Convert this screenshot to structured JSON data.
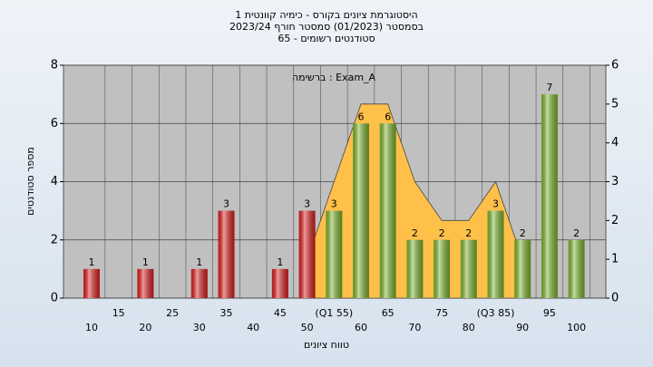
{
  "chart_data": {
    "type": "bar",
    "title": [
      "היסטוגרמת ציונים בקורס - כימיה קוונטית 1",
      "בסמסטר (01/2023) סמסטר חורף 2023/24",
      "סטודנטים רשומים - 65"
    ],
    "annotation": "ברשימה : Exam_A",
    "xlabel": "טווח ציונים",
    "ylabel": "מספר סטודנטים",
    "categories": [
      "10",
      "15",
      "20",
      "25",
      "30",
      "35",
      "40",
      "45",
      "50",
      "(Q1 55)",
      "60",
      "65",
      "70",
      "75",
      "80",
      "(Q3 85)",
      "90",
      "95",
      "100"
    ],
    "values": [
      1,
      0,
      1,
      0,
      1,
      3,
      0,
      1,
      3,
      3,
      6,
      6,
      2,
      2,
      2,
      3,
      2,
      7,
      2
    ],
    "colors": [
      "#e02020",
      "#e02020",
      "#e02020",
      "#e02020",
      "#e02020",
      "#e02020",
      "#e02020",
      "#e02020",
      "#e02020",
      "#80b830",
      "#80b830",
      "#80b830",
      "#80b830",
      "#80b830",
      "#80b830",
      "#80b830",
      "#80b830",
      "#80b830",
      "#80b830"
    ],
    "area": {
      "axis": "y2",
      "color": "#ffc04a",
      "values": [
        null,
        null,
        null,
        null,
        null,
        null,
        null,
        null,
        1,
        3,
        5,
        5,
        3,
        2,
        2,
        3,
        1,
        null,
        null
      ]
    },
    "ylim": [
      0,
      8
    ],
    "yticks": [
      0,
      2,
      4,
      6,
      8
    ],
    "y2lim": [
      0,
      6
    ],
    "y2ticks": [
      0,
      1,
      2,
      3,
      4,
      5,
      6
    ],
    "grid": true
  }
}
